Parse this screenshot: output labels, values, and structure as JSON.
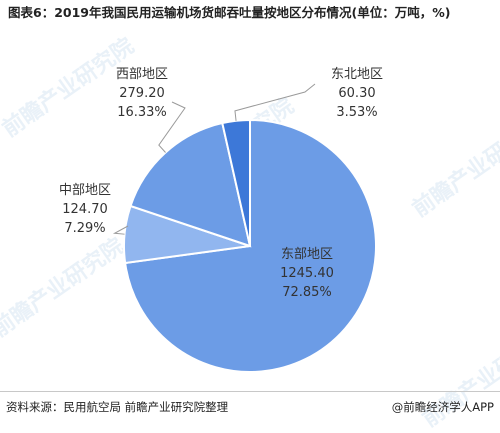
{
  "title": "图表6：2019年我国民用运输机场货邮吞吐量按地区分布情况(单位：万吨，%)",
  "chart_data": {
    "type": "pie",
    "title": "图表6：2019年我国民用运输机场货邮吞吐量按地区分布情况(单位：万吨，%)",
    "slices": [
      {
        "name": "东部地区",
        "value": 1245.4,
        "value_label": "1245.40",
        "percent_label": "72.85%",
        "percent": 72.85,
        "color": "#6c9ce6"
      },
      {
        "name": "中部地区",
        "value": 124.7,
        "value_label": "124.70",
        "percent_label": "7.29%",
        "percent": 7.29,
        "color": "#91b6ef"
      },
      {
        "name": "西部地区",
        "value": 279.2,
        "value_label": "279.20",
        "percent_label": "16.33%",
        "percent": 16.33,
        "color": "#6c9ce6"
      },
      {
        "name": "东北地区",
        "value": 60.3,
        "value_label": "60.30",
        "percent_label": "3.53%",
        "percent": 3.53,
        "color": "#3d78d8"
      }
    ]
  },
  "footer": {
    "source": "资料来源：民用航空局 前瞻产业研究院整理",
    "brand": "@前瞻经济学人APP"
  },
  "watermark": "前瞻产业研究院"
}
